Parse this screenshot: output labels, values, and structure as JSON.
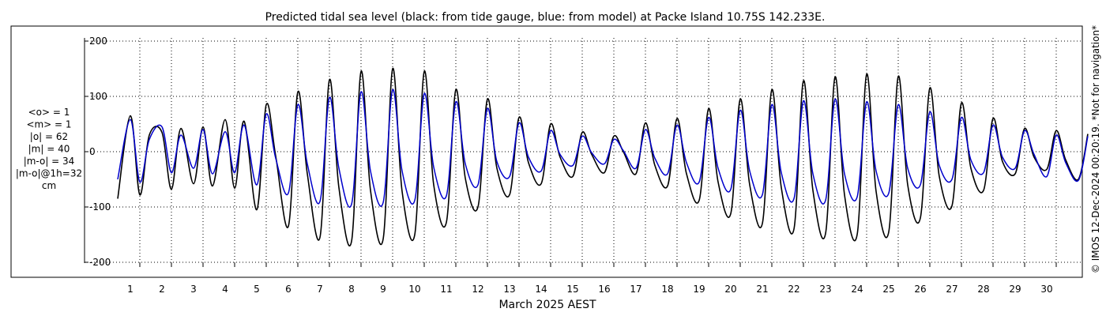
{
  "chart_data": {
    "type": "line",
    "title": "Predicted tidal sea level (black: from tide gauge, blue: from model) at Packe Island 10.75S 142.233E.",
    "xlabel": "March 2025 AEST",
    "ylabel": "",
    "x_day_ticks": [
      "1",
      "2",
      "3",
      "4",
      "5",
      "6",
      "7",
      "8",
      "9",
      "10",
      "11",
      "12",
      "13",
      "14",
      "15",
      "16",
      "17",
      "18",
      "19",
      "20",
      "21",
      "22",
      "23",
      "24",
      "25",
      "26",
      "27",
      "28",
      "29",
      "30"
    ],
    "xlim_days": [
      0.5,
      31.3
    ],
    "ylim": [
      -230,
      205
    ],
    "y_ticks": [
      200,
      100,
      0,
      -100,
      -200
    ],
    "grid": true,
    "stats": [
      "<o> = 1",
      "<m> = 1",
      "|o| = 62",
      "|m| = 40",
      "|m-o| = 34",
      "|m-o|@1h=32",
      "cm"
    ],
    "copyright": "© IMOS 12-Dec-2024 00:20:19. *Not for navigation*",
    "series": [
      {
        "name": "tide gauge",
        "color": "#000000",
        "x_day": [
          0.6,
          1.0,
          1.3,
          1.6,
          2.0,
          2.3,
          2.6,
          3.0,
          3.3,
          3.6,
          4.0,
          4.3,
          4.6,
          5.0,
          5.3,
          5.6,
          6.0,
          6.3,
          6.6,
          7.0,
          7.3,
          7.6,
          8.0,
          8.3,
          8.6,
          9.0,
          9.3,
          9.6,
          10.0,
          10.3,
          10.6,
          11.0,
          11.3,
          11.6,
          12.0,
          12.3,
          12.6,
          13.0,
          13.3,
          13.6,
          14.0,
          14.3,
          14.6,
          15.0,
          15.3,
          15.6,
          16.0,
          16.3,
          16.6,
          17.0,
          17.3,
          17.6,
          18.0,
          18.3,
          18.6,
          19.0,
          19.3,
          19.6,
          20.0,
          20.3,
          20.6,
          21.0,
          21.3,
          21.6,
          22.0,
          22.3,
          22.6,
          23.0,
          23.3,
          23.6,
          24.0,
          24.3,
          24.6,
          25.0,
          25.3,
          25.6,
          26.0,
          26.3,
          26.6,
          27.0,
          27.3,
          27.6,
          28.0,
          28.3,
          28.6,
          29.0,
          29.3,
          29.6,
          30.0,
          30.3,
          30.6,
          31.0,
          31.3
        ],
        "values": [
          -85,
          65,
          -78,
          30,
          35,
          -68,
          42,
          -58,
          45,
          -62,
          58,
          -66,
          55,
          -105,
          85,
          -8,
          -135,
          108,
          -40,
          -155,
          130,
          -65,
          -162,
          145,
          -70,
          -158,
          150,
          -72,
          -150,
          145,
          -60,
          -128,
          112,
          -48,
          -100,
          95,
          -30,
          -78,
          62,
          -20,
          -58,
          50,
          -10,
          -45,
          35,
          -5,
          -38,
          28,
          0,
          -40,
          52,
          -25,
          -62,
          60,
          -40,
          -88,
          78,
          -55,
          -112,
          95,
          -60,
          -130,
          112,
          -65,
          -140,
          128,
          -70,
          -148,
          135,
          -78,
          -150,
          140,
          -72,
          -145,
          136,
          -60,
          -120,
          115,
          -45,
          -98,
          88,
          -30,
          -70,
          60,
          -18,
          -40,
          42,
          -10,
          -32,
          38,
          -15,
          -50,
          32
        ]
      },
      {
        "name": "model",
        "color": "#0000cc",
        "x_day": [
          0.6,
          1.0,
          1.3,
          1.6,
          2.0,
          2.3,
          2.6,
          3.0,
          3.3,
          3.6,
          4.0,
          4.3,
          4.6,
          5.0,
          5.3,
          5.6,
          6.0,
          6.3,
          6.6,
          7.0,
          7.3,
          7.6,
          8.0,
          8.3,
          8.6,
          9.0,
          9.3,
          9.6,
          10.0,
          10.3,
          10.6,
          11.0,
          11.3,
          11.6,
          12.0,
          12.3,
          12.6,
          13.0,
          13.3,
          13.6,
          14.0,
          14.3,
          14.6,
          15.0,
          15.3,
          15.6,
          16.0,
          16.3,
          16.6,
          17.0,
          17.3,
          17.6,
          18.0,
          18.3,
          18.6,
          19.0,
          19.3,
          19.6,
          20.0,
          20.3,
          20.6,
          21.0,
          21.3,
          21.6,
          22.0,
          22.3,
          22.6,
          23.0,
          23.3,
          23.6,
          24.0,
          24.3,
          24.6,
          25.0,
          25.3,
          25.6,
          26.0,
          26.3,
          26.6,
          27.0,
          27.3,
          27.6,
          28.0,
          28.3,
          28.6,
          29.0,
          29.3,
          29.6,
          30.0,
          30.3,
          30.6,
          31.0,
          31.3
        ],
        "values": [
          -50,
          58,
          -55,
          22,
          45,
          -38,
          30,
          -30,
          40,
          -40,
          36,
          -38,
          48,
          -60,
          68,
          -12,
          -75,
          85,
          -22,
          -90,
          98,
          -30,
          -95,
          108,
          -35,
          -92,
          112,
          -35,
          -88,
          105,
          -28,
          -80,
          90,
          -22,
          -60,
          78,
          -18,
          -45,
          52,
          -10,
          -35,
          38,
          -5,
          -25,
          28,
          -2,
          -22,
          22,
          2,
          -30,
          40,
          -12,
          -40,
          48,
          -20,
          -55,
          62,
          -30,
          -68,
          75,
          -35,
          -78,
          85,
          -38,
          -85,
          92,
          -40,
          -88,
          95,
          -40,
          -82,
          90,
          -35,
          -75,
          85,
          -30,
          -60,
          72,
          -25,
          -50,
          62,
          -15,
          -38,
          48,
          -10,
          -30,
          38,
          -5,
          -45,
          30,
          -20,
          -52,
          28
        ]
      }
    ]
  }
}
